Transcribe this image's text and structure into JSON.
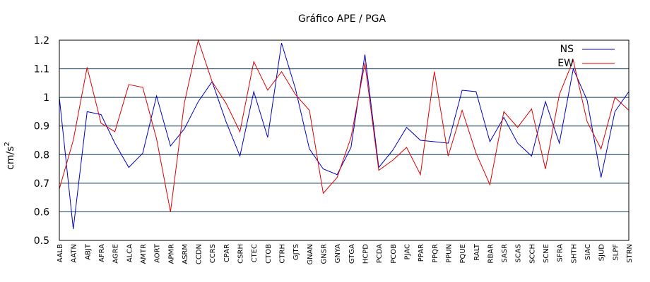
{
  "chart_data": {
    "type": "line",
    "title": "Gráfico  APE / PGA",
    "xlabel": "",
    "ylabel": "cm/s",
    "ylabel_superscript": "2",
    "ylim": [
      0.5,
      1.2
    ],
    "yticks": [
      "0.5",
      "0.6",
      "0.7",
      "0.8",
      "0.9",
      "1",
      "1.1",
      "1.2"
    ],
    "grid": "horizontal",
    "legend_position": "top-right",
    "categories": [
      "AALB",
      "AATN",
      "ABJT",
      "AFRA",
      "AGRE",
      "ALCA",
      "AMTR",
      "AORT",
      "APMR",
      "ASRM",
      "CCDN",
      "CCRS",
      "CPAR",
      "CSRH",
      "CTEC",
      "CTOB",
      "CTRH",
      "GJTS",
      "GNAN",
      "GNSR",
      "GNYA",
      "GTGA",
      "HCPD",
      "PCDA",
      "PCOB",
      "PJAC",
      "PPAR",
      "PPQR",
      "PPUN",
      "PQUE",
      "RALT",
      "RBAR",
      "SASR",
      "SCAS",
      "SCCH",
      "SCNE",
      "SFRA",
      "SHTH",
      "SIAC",
      "SJUD",
      "SLPF",
      "STRN"
    ],
    "series": [
      {
        "name": "NS",
        "color": "#0000c0",
        "values": [
          1.0,
          0.54,
          0.95,
          0.94,
          0.84,
          0.755,
          0.805,
          1.005,
          0.83,
          0.89,
          0.985,
          1.055,
          0.915,
          0.795,
          1.02,
          0.86,
          1.19,
          1.03,
          0.82,
          0.75,
          0.73,
          0.825,
          1.15,
          0.755,
          0.815,
          0.895,
          0.85,
          0.845,
          0.84,
          1.025,
          1.02,
          0.845,
          0.93,
          0.84,
          0.795,
          0.985,
          0.84,
          1.1,
          0.99,
          0.72,
          0.95,
          1.02
        ]
      },
      {
        "name": "EW",
        "color": "#e00000",
        "values": [
          0.68,
          0.85,
          1.105,
          0.91,
          0.88,
          1.045,
          1.035,
          0.855,
          0.6,
          0.98,
          1.2,
          1.055,
          0.98,
          0.88,
          1.125,
          1.025,
          1.09,
          1.01,
          0.955,
          0.665,
          0.72,
          0.86,
          1.12,
          0.745,
          0.78,
          0.825,
          0.73,
          1.09,
          0.795,
          0.955,
          0.805,
          0.695,
          0.95,
          0.895,
          0.96,
          0.75,
          1.01,
          1.13,
          0.915,
          0.82,
          1.0,
          0.955
        ]
      }
    ]
  },
  "colors": {
    "grid": "#0d3a5c",
    "frame": "#000000"
  }
}
